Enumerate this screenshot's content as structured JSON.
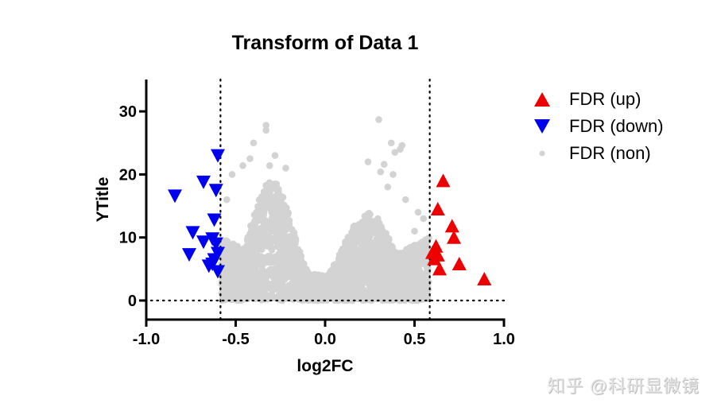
{
  "chart_data": {
    "type": "scatter",
    "title": "Transform of Data 1",
    "xlabel": "log2FC",
    "ylabel": "YTitle",
    "xlim": [
      -1.0,
      1.0
    ],
    "ylim": [
      -3,
      35
    ],
    "xticks": [
      "-1.0",
      "-0.5",
      "0.0",
      "0.5",
      "1.0"
    ],
    "xtick_values": [
      -1.0,
      -0.5,
      0.0,
      0.5,
      1.0
    ],
    "yticks": [
      "0",
      "10",
      "20",
      "30"
    ],
    "ytick_values": [
      0,
      10,
      20,
      30
    ],
    "grid": false,
    "legend_position": "right",
    "threshold_lines": {
      "x": [
        -0.585,
        0.585
      ],
      "y": [
        0
      ],
      "style": "dotted"
    },
    "series": [
      {
        "name": "FDR (up)",
        "marker": "triangle-up",
        "color": "#ee0000",
        "points": [
          [
            0.66,
            19.0
          ],
          [
            0.63,
            14.5
          ],
          [
            0.71,
            11.8
          ],
          [
            0.72,
            10.0
          ],
          [
            0.62,
            8.6
          ],
          [
            0.6,
            7.6
          ],
          [
            0.61,
            6.6
          ],
          [
            0.63,
            7.2
          ],
          [
            0.64,
            5.0
          ],
          [
            0.75,
            5.8
          ],
          [
            0.89,
            3.4
          ]
        ]
      },
      {
        "name": "FDR (down)",
        "marker": "triangle-down",
        "color": "#0000ee",
        "points": [
          [
            -0.6,
            23.0
          ],
          [
            -0.68,
            18.8
          ],
          [
            -0.61,
            17.5
          ],
          [
            -0.84,
            16.6
          ],
          [
            -0.62,
            12.8
          ],
          [
            -0.74,
            10.8
          ],
          [
            -0.63,
            9.8
          ],
          [
            -0.68,
            9.3
          ],
          [
            -0.61,
            9.0
          ],
          [
            -0.76,
            7.3
          ],
          [
            -0.6,
            7.5
          ],
          [
            -0.62,
            6.5
          ],
          [
            -0.65,
            5.5
          ],
          [
            -0.6,
            4.6
          ],
          [
            -0.63,
            5.8
          ]
        ]
      },
      {
        "name": "FDR (non)",
        "marker": "circle",
        "color": "#d3d3d3",
        "description": "Dense cloud of several thousand non-significant points spanning log2FC -0.58 to 0.58; V/volcano shape with two lobes peaking near log2FC -0.3 (y up to ~20) and +0.25 (y up to ~15), sparse outliers up to y~28.",
        "points": [
          [
            -0.33,
            27.8
          ],
          [
            -0.33,
            27.0
          ],
          [
            0.3,
            28.7
          ],
          [
            -0.4,
            25
          ],
          [
            -0.28,
            23
          ],
          [
            0.37,
            25
          ],
          [
            0.43,
            24.6
          ],
          [
            0.39,
            23.5
          ],
          [
            0.42,
            24
          ],
          [
            0.24,
            22
          ],
          [
            0.33,
            21.6
          ],
          [
            0.38,
            20
          ],
          [
            0.31,
            20.4
          ],
          [
            -0.42,
            22.5
          ],
          [
            -0.46,
            21.4
          ],
          [
            -0.31,
            21.4
          ],
          [
            -0.22,
            21
          ],
          [
            -0.52,
            20
          ],
          [
            -0.55,
            16
          ],
          [
            0.35,
            18
          ],
          [
            0.45,
            16
          ],
          [
            0.52,
            14
          ],
          [
            0.55,
            13
          ],
          [
            0.5,
            11
          ]
        ]
      }
    ]
  },
  "legend": {
    "items": [
      {
        "label": "FDR (up)",
        "symbol": "triangle-up",
        "color": "#ee0000"
      },
      {
        "label": "FDR (down)",
        "symbol": "triangle-down",
        "color": "#0000ee"
      },
      {
        "label": "FDR (non)",
        "symbol": "circle",
        "color": "#d3d3d3"
      }
    ]
  },
  "watermark": "知乎 @科研显微镜"
}
